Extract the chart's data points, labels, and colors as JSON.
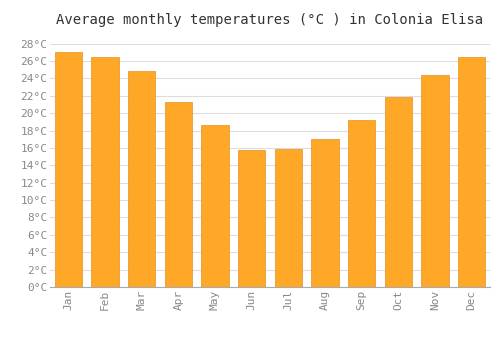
{
  "title": "Average monthly temperatures (°C ) in Colonia Elisa",
  "months": [
    "Jan",
    "Feb",
    "Mar",
    "Apr",
    "May",
    "Jun",
    "Jul",
    "Aug",
    "Sep",
    "Oct",
    "Nov",
    "Dec"
  ],
  "values": [
    27.0,
    26.5,
    24.8,
    21.3,
    18.7,
    15.8,
    15.9,
    17.0,
    19.2,
    21.9,
    24.4,
    26.5
  ],
  "bar_color": "#FFA726",
  "bar_edge_color": "#E69020",
  "background_color": "#FFFFFF",
  "grid_color": "#DDDDDD",
  "ylim": [
    0,
    29
  ],
  "ytick_step": 2,
  "title_fontsize": 10,
  "tick_fontsize": 8,
  "tick_color": "#888888",
  "font_family": "monospace"
}
